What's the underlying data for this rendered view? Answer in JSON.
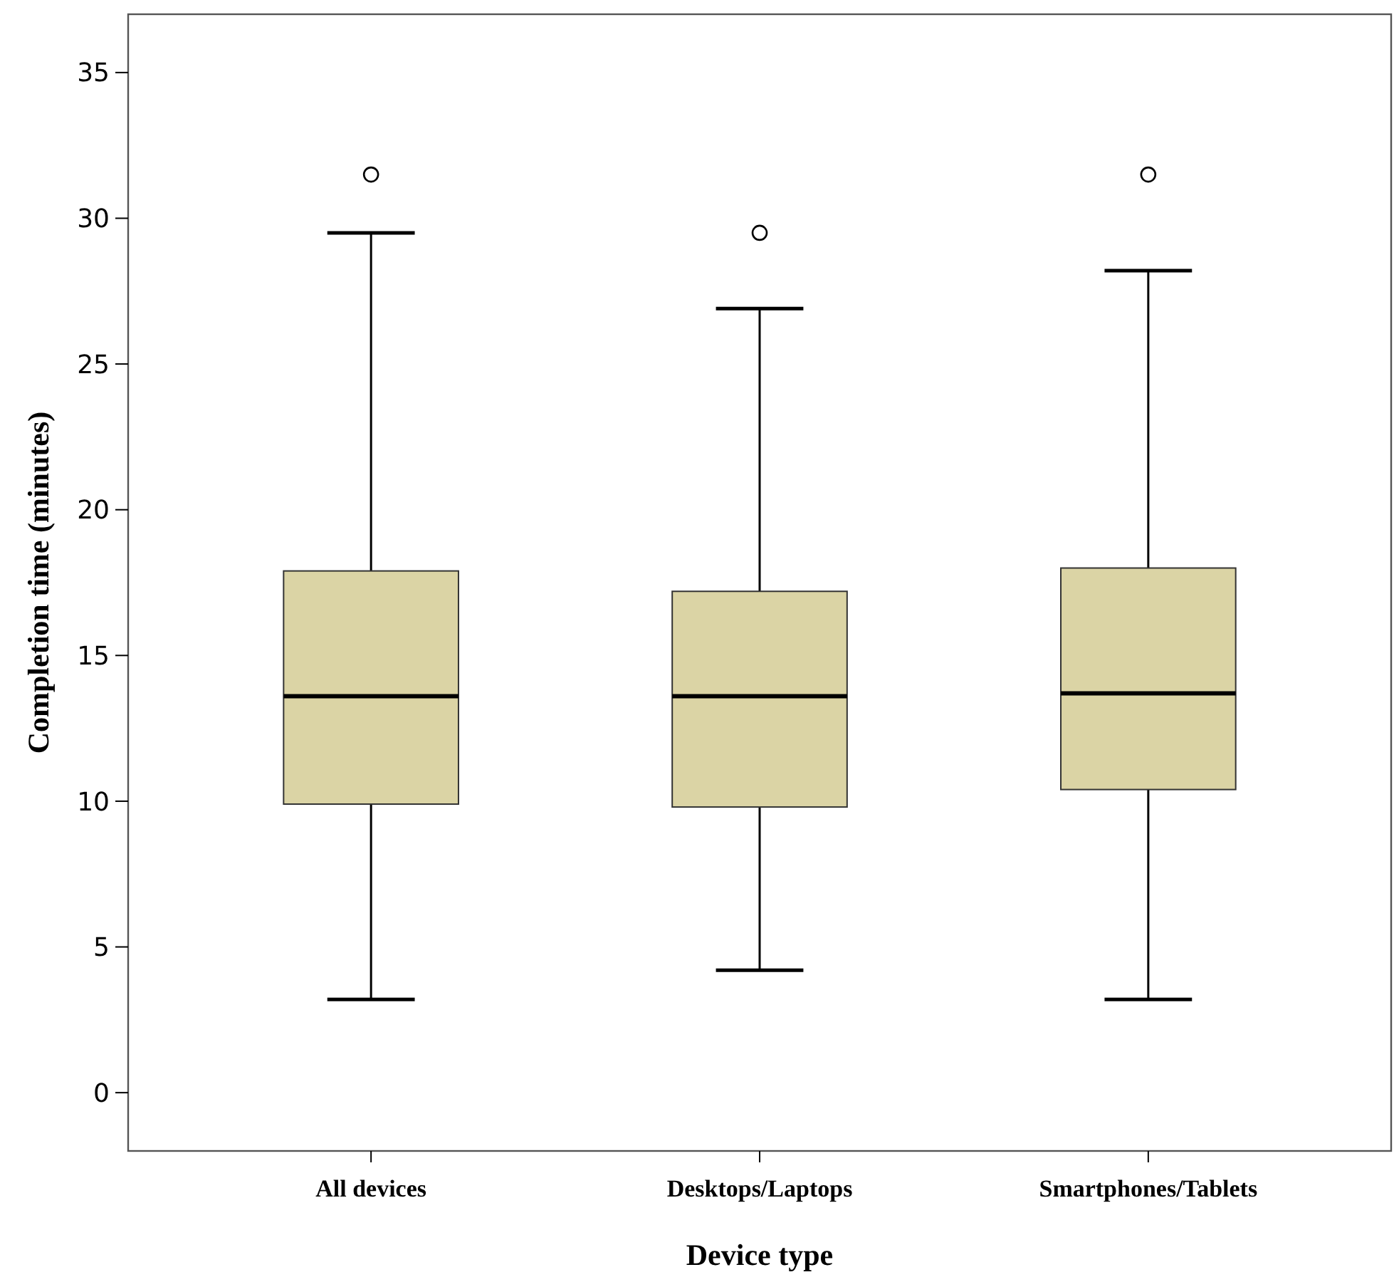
{
  "chart_data": {
    "type": "box",
    "xlabel": "Device type",
    "ylabel": "Completion time (minutes)",
    "categories": [
      "All devices",
      "Desktops/Laptops",
      "Smartphones/Tablets"
    ],
    "color": "#dbd4a5",
    "ylim": [
      -2,
      37
    ],
    "yticks": [
      0,
      5,
      10,
      15,
      20,
      25,
      30,
      35
    ],
    "grid": false,
    "marker": "circle",
    "boxes": [
      {
        "low": 3.2,
        "q1": 9.9,
        "median": 13.6,
        "q3": 17.9,
        "high": 29.5,
        "outliers": [
          31.5
        ]
      },
      {
        "low": 4.2,
        "q1": 9.8,
        "median": 13.6,
        "q3": 17.2,
        "high": 26.9,
        "outliers": [
          29.5
        ]
      },
      {
        "low": 3.2,
        "q1": 10.4,
        "median": 13.7,
        "q3": 18.0,
        "high": 28.2,
        "outliers": [
          31.5
        ]
      }
    ]
  }
}
